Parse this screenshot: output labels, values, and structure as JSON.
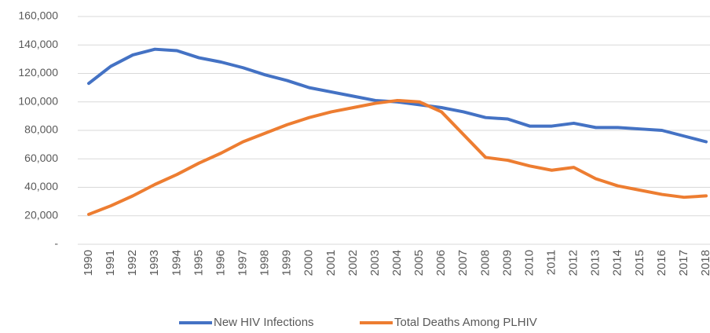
{
  "chart_data": {
    "type": "line",
    "categories": [
      "1990",
      "1991",
      "1992",
      "1993",
      "1994",
      "1995",
      "1996",
      "1997",
      "1998",
      "1999",
      "2000",
      "2001",
      "2002",
      "2003",
      "2004",
      "2005",
      "2006",
      "2007",
      "2008",
      "2009",
      "2010",
      "2011",
      "2012",
      "2013",
      "2014",
      "2015",
      "2016",
      "2017",
      "2018"
    ],
    "series": [
      {
        "name": "New HIV Infections",
        "color": "#4472c4",
        "values": [
          113000,
          125000,
          133000,
          137000,
          136000,
          131000,
          128000,
          124000,
          119000,
          115000,
          110000,
          107000,
          104000,
          101000,
          100000,
          98000,
          96000,
          93000,
          89000,
          88000,
          83000,
          83000,
          85000,
          82000,
          82000,
          81000,
          80000,
          76000,
          72000
        ]
      },
      {
        "name": "Total Deaths Among PLHIV",
        "color": "#ed7d31",
        "values": [
          21000,
          27000,
          34000,
          42000,
          49000,
          57000,
          64000,
          72000,
          78000,
          84000,
          89000,
          93000,
          96000,
          99000,
          101000,
          100000,
          93000,
          77000,
          61000,
          59000,
          55000,
          52000,
          54000,
          46000,
          41000,
          38000,
          35000,
          33000,
          34000
        ]
      }
    ],
    "ylim": [
      0,
      160000
    ],
    "yticks": [
      {
        "value": 0,
        "label": "-"
      },
      {
        "value": 20000,
        "label": "20,000"
      },
      {
        "value": 40000,
        "label": "40,000"
      },
      {
        "value": 60000,
        "label": "60,000"
      },
      {
        "value": 80000,
        "label": "80,000"
      },
      {
        "value": 100000,
        "label": "100,000"
      },
      {
        "value": 120000,
        "label": "120,000"
      },
      {
        "value": 140000,
        "label": "140,000"
      },
      {
        "value": 160000,
        "label": "160,000"
      }
    ],
    "grid": true,
    "legend": "bottom"
  }
}
